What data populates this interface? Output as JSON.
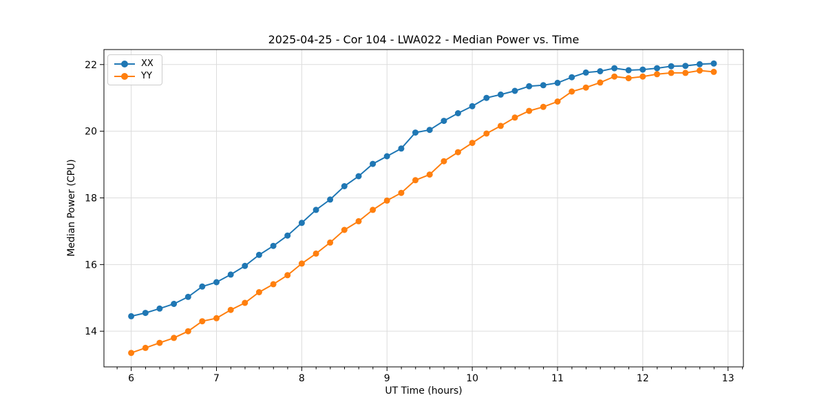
{
  "chart_data": {
    "type": "line",
    "title": "2025-04-25 - Cor 104 - LWA022 - Median Power vs. Time",
    "xlabel": "UT Time (hours)",
    "ylabel": "Median Power (CPU)",
    "xlim": [
      5.68,
      13.18
    ],
    "ylim": [
      12.93,
      22.45
    ],
    "x_ticks": [
      6,
      7,
      8,
      9,
      10,
      11,
      12,
      13
    ],
    "y_ticks": [
      14,
      16,
      18,
      20,
      22
    ],
    "x_minor_step": 0.1667,
    "grid": true,
    "legend_position": "upper-left",
    "style": {
      "grid_color": "#dcdcdc",
      "spine_color": "#000000",
      "background": "#ffffff"
    },
    "x": [
      6.0,
      6.167,
      6.333,
      6.5,
      6.667,
      6.833,
      7.0,
      7.167,
      7.333,
      7.5,
      7.667,
      7.833,
      8.0,
      8.167,
      8.333,
      8.5,
      8.667,
      8.833,
      9.0,
      9.167,
      9.333,
      9.5,
      9.667,
      9.833,
      10.0,
      10.167,
      10.333,
      10.5,
      10.667,
      10.833,
      11.0,
      11.167,
      11.333,
      11.5,
      11.667,
      11.833,
      12.0,
      12.167,
      12.333,
      12.5,
      12.667,
      12.833
    ],
    "series": [
      {
        "name": "XX",
        "color": "#1f77b4",
        "values": [
          14.45,
          14.55,
          14.68,
          14.82,
          15.03,
          15.34,
          15.47,
          15.7,
          15.96,
          16.29,
          16.56,
          16.87,
          17.25,
          17.64,
          17.95,
          18.35,
          18.65,
          19.02,
          19.25,
          19.48,
          19.96,
          20.04,
          20.31,
          20.54,
          20.75,
          21.0,
          21.1,
          21.21,
          21.35,
          21.38,
          21.45,
          21.62,
          21.76,
          21.8,
          21.89,
          21.83,
          21.85,
          21.89,
          21.95,
          21.96,
          22.01,
          22.03
        ]
      },
      {
        "name": "YY",
        "color": "#ff7f0e",
        "values": [
          13.35,
          13.5,
          13.65,
          13.8,
          14.0,
          14.3,
          14.39,
          14.64,
          14.85,
          15.17,
          15.41,
          15.68,
          16.03,
          16.33,
          16.66,
          17.04,
          17.3,
          17.64,
          17.92,
          18.15,
          18.53,
          18.7,
          19.1,
          19.37,
          19.65,
          19.93,
          20.16,
          20.41,
          20.61,
          20.73,
          20.89,
          21.19,
          21.31,
          21.46,
          21.64,
          21.59,
          21.64,
          21.71,
          21.75,
          21.75,
          21.82,
          21.78
        ]
      }
    ]
  }
}
